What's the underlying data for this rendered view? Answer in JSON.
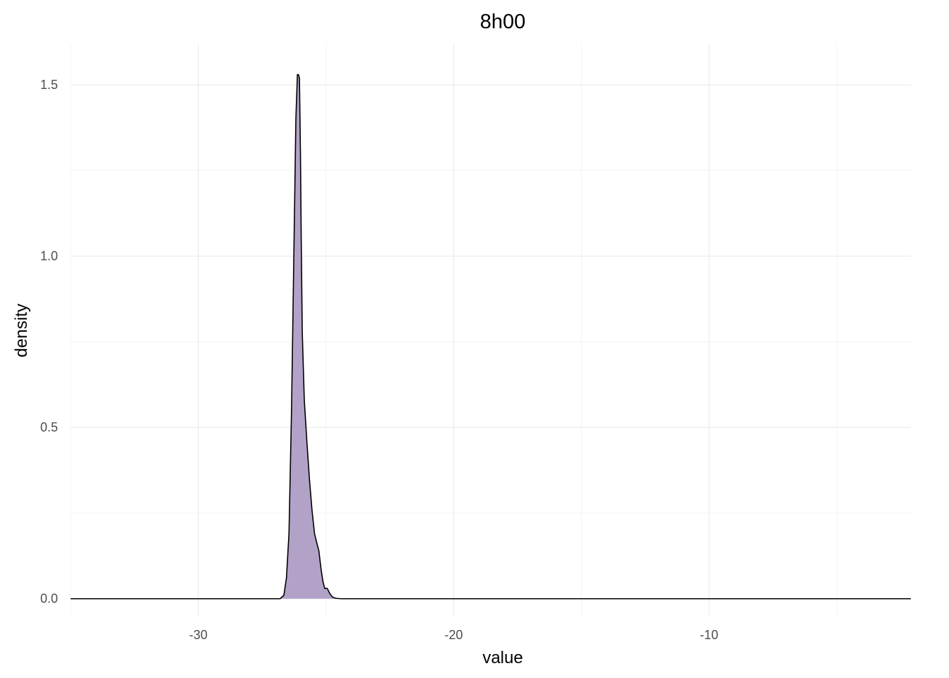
{
  "chart_data": {
    "type": "area",
    "title": "8h00",
    "xlabel": "value",
    "ylabel": "density",
    "xlim": [
      -35,
      -2.1
    ],
    "ylim": [
      -0.05,
      1.62
    ],
    "x_ticks": [
      -30,
      -20,
      -10
    ],
    "x_tick_labels": [
      "-30",
      "-20",
      "-10"
    ],
    "y_ticks": [
      0.0,
      0.5,
      1.0,
      1.5
    ],
    "y_tick_labels": [
      "0.0",
      "0.5",
      "1.0",
      "1.5"
    ],
    "grid": true,
    "fill_color": "#b3a2c7",
    "line_color": "#000000",
    "series": [
      {
        "x": [
          -35.0,
          -26.8,
          -26.65,
          -26.55,
          -26.45,
          -26.35,
          -26.25,
          -26.18,
          -26.12,
          -26.08,
          -26.04,
          -26.0,
          -25.97,
          -25.93,
          -25.85,
          -25.75,
          -25.65,
          -25.55,
          -25.45,
          -25.35,
          -25.28,
          -25.2,
          -25.12,
          -25.05,
          -24.95,
          -24.85,
          -24.75,
          -24.6,
          -24.4,
          -2.1
        ],
        "y": [
          0.0,
          0.0,
          0.01,
          0.06,
          0.19,
          0.55,
          1.05,
          1.4,
          1.53,
          1.53,
          1.52,
          1.3,
          1.05,
          0.78,
          0.58,
          0.46,
          0.35,
          0.26,
          0.19,
          0.16,
          0.14,
          0.09,
          0.05,
          0.03,
          0.03,
          0.015,
          0.005,
          0.001,
          0.0,
          0.0
        ]
      }
    ]
  }
}
